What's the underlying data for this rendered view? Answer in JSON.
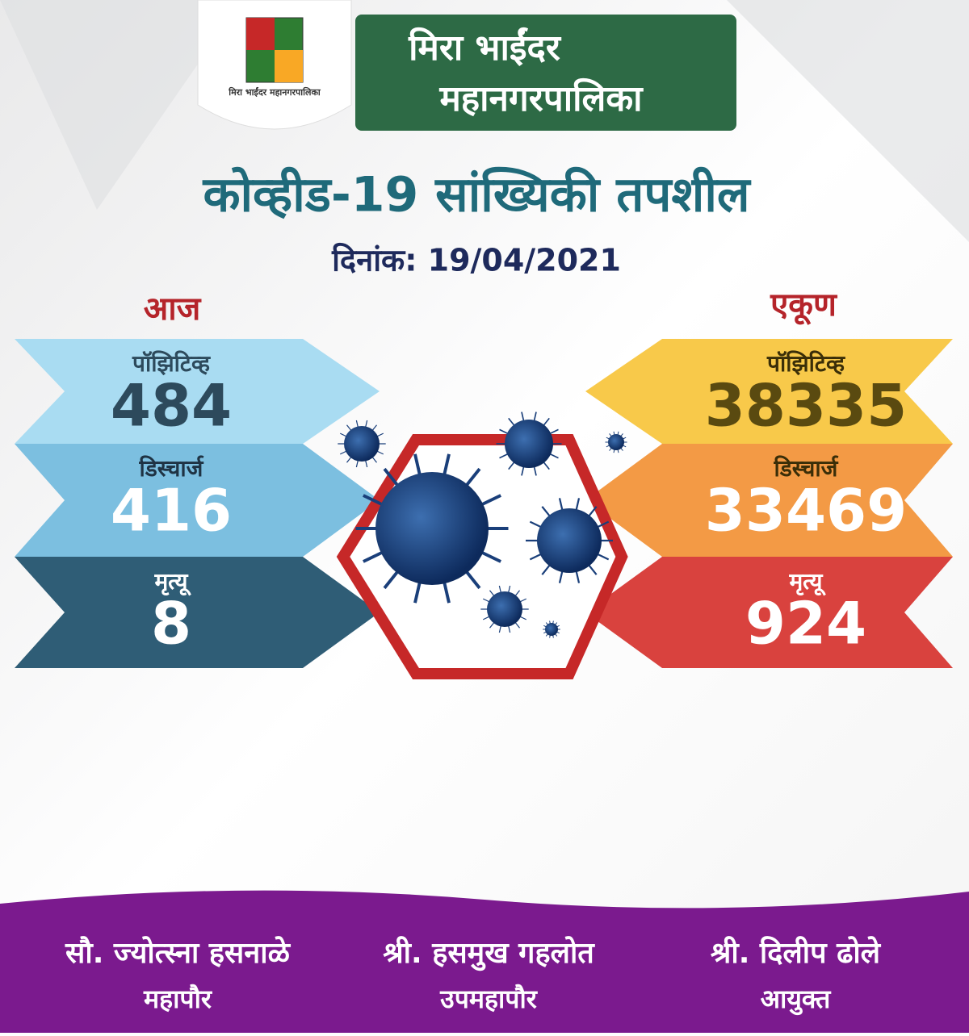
{
  "header": {
    "org_name_line1": "मिरा भाईंदर",
    "org_name_line2": "महानगरपालिका",
    "emblem_text": "मिरा भाईंदर महानगरपालिका",
    "title": "कोव्हीड-19 सांख्यिकी तपशील",
    "date": "दिनांक: 19/04/2021"
  },
  "today": {
    "heading": "आज",
    "items": [
      {
        "label": "पॉझिटिव्ह",
        "value": "484"
      },
      {
        "label": "डिस्चार्ज",
        "value": "416"
      },
      {
        "label": "मृत्यू",
        "value": "8"
      }
    ]
  },
  "total": {
    "heading": "एकूण",
    "items": [
      {
        "label": "पॉझिटिव्ह",
        "value": "38335"
      },
      {
        "label": "डिस्चार्ज",
        "value": "33469"
      },
      {
        "label": "मृत्यू",
        "value": "924"
      }
    ]
  },
  "footer": {
    "people": [
      {
        "name": "सौ. ज्योत्स्ना हसनाळे",
        "role": "महापौर"
      },
      {
        "name": "श्री. हसमुख गहलोत",
        "role": "उपमहापौर"
      },
      {
        "name": "श्री. दिलीप ढोले",
        "role": "आयुक्त"
      }
    ]
  }
}
